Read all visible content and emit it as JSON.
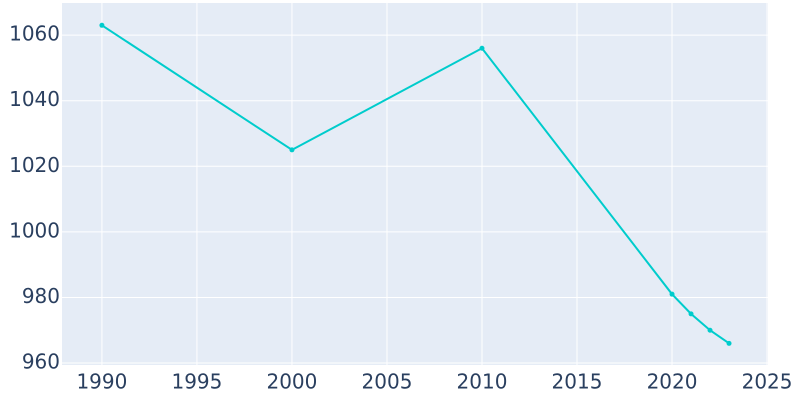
{
  "chart_data": {
    "type": "line",
    "x": [
      1990,
      2000,
      2010,
      2020,
      2021,
      2022,
      2023
    ],
    "series": [
      {
        "color": "#00cccc",
        "values": [
          1063,
          1025,
          1056,
          981,
          975,
          970,
          966
        ]
      }
    ],
    "xlim": [
      1987.9,
      2025.05
    ],
    "xticks": [
      1990,
      1995,
      2000,
      2005,
      2010,
      2015,
      2020,
      2025
    ],
    "ylim": [
      959.4,
      1069.8
    ],
    "yticks": [
      960,
      980,
      1000,
      1020,
      1040,
      1060
    ],
    "grid": true
  }
}
